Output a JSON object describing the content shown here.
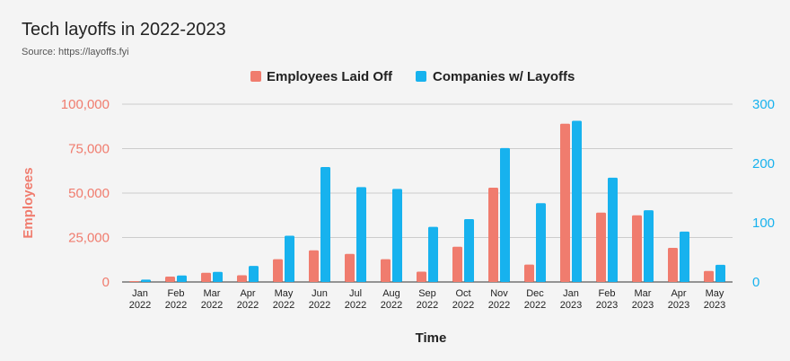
{
  "header": {
    "title": "Tech layoffs in 2022-2023",
    "subtitle": "Source: https://layoffs.fyi"
  },
  "colors": {
    "employees": "#f07c6e",
    "companies": "#17b2ee",
    "grid": "#cccccc",
    "axis": "#333333"
  },
  "chart_data": {
    "type": "bar",
    "xlabel": "Time",
    "ylabel": "Employees",
    "categories": [
      [
        "Jan",
        "2022"
      ],
      [
        "Feb",
        "2022"
      ],
      [
        "Mar",
        "2022"
      ],
      [
        "Apr",
        "2022"
      ],
      [
        "May",
        "2022"
      ],
      [
        "Jun",
        "2022"
      ],
      [
        "Jul",
        "2022"
      ],
      [
        "Aug",
        "2022"
      ],
      [
        "Sep",
        "2022"
      ],
      [
        "Oct",
        "2022"
      ],
      [
        "Nov",
        "2022"
      ],
      [
        "Dec",
        "2022"
      ],
      [
        "Jan",
        "2023"
      ],
      [
        "Feb",
        "2023"
      ],
      [
        "Mar",
        "2023"
      ],
      [
        "Apr",
        "2023"
      ],
      [
        "May",
        "2023"
      ]
    ],
    "series": [
      {
        "name": "Employees Laid Off",
        "axis": "left",
        "color": "#f07c6e",
        "values": [
          500,
          3000,
          5200,
          3800,
          12800,
          17800,
          15800,
          12800,
          5800,
          19800,
          53000,
          9800,
          89000,
          39000,
          37500,
          19200,
          6200
        ]
      },
      {
        "name": "Companies w/ Layoffs",
        "axis": "right",
        "color": "#17b2ee",
        "values": [
          4,
          11,
          17,
          27,
          78,
          194,
          160,
          157,
          93,
          106,
          226,
          133,
          272,
          176,
          121,
          85,
          29
        ]
      }
    ],
    "y_left": {
      "min": 0,
      "max": 100000,
      "ticks": [
        "0",
        "25,000",
        "50,000",
        "75,000",
        "100,000"
      ]
    },
    "y_right": {
      "min": 0,
      "max": 300,
      "ticks": [
        "0",
        "100",
        "200",
        "300"
      ]
    },
    "grid": true,
    "legend_position": "top-center"
  }
}
